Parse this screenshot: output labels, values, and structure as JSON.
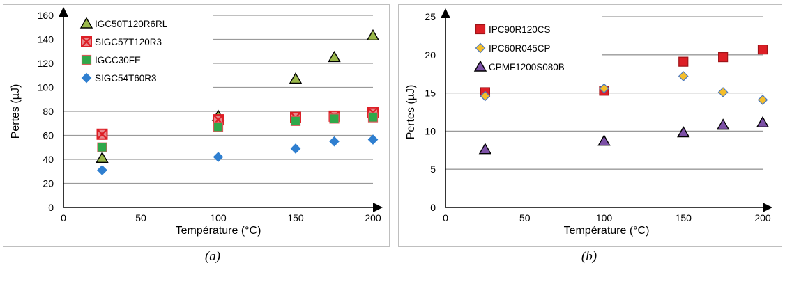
{
  "colors": {
    "gridline": "#9a9a9a",
    "axis": "#000000",
    "red": "#dd1f26",
    "green": "#2fa84a",
    "olive": "#9ab84a",
    "blue": "#2f7fd0",
    "gold": "#f5be2a",
    "purple": "#7c50a6"
  },
  "captions": {
    "a": "(a)",
    "b": "(b)"
  },
  "chart_data": [
    {
      "type": "scatter",
      "title": "",
      "xlabel": "Température (°C)",
      "ylabel": "Pertes (µJ)",
      "xlim": [
        0,
        200
      ],
      "ylim": [
        0,
        160
      ],
      "xticks": [
        0,
        50,
        100,
        150,
        200
      ],
      "yticks": [
        0,
        20,
        40,
        60,
        80,
        100,
        120,
        140,
        160
      ],
      "grid": "horizontal",
      "legend_position": "top-left",
      "series": [
        {
          "name": "IGC50T120R6RL",
          "marker": "triangle",
          "color": "#9ab84a",
          "x": [
            25,
            100,
            150,
            175,
            200
          ],
          "y": [
            41,
            76,
            107,
            125,
            143
          ]
        },
        {
          "name": "SIGC57T120R3",
          "marker": "square-cross",
          "color": "#dd1f26",
          "x": [
            25,
            100,
            150,
            175,
            200
          ],
          "y": [
            61,
            73,
            75,
            76,
            79
          ]
        },
        {
          "name": "IGCC30FE",
          "marker": "square",
          "color": "#2fa84a",
          "x": [
            25,
            100,
            150,
            175,
            200
          ],
          "y": [
            50,
            67,
            72,
            74,
            75
          ]
        },
        {
          "name": "SIGC54T60R3",
          "marker": "diamond",
          "color": "#2f7fd0",
          "x": [
            25,
            100,
            150,
            175,
            200
          ],
          "y": [
            31,
            42,
            49,
            55,
            56.5
          ]
        }
      ]
    },
    {
      "type": "scatter",
      "title": "",
      "xlabel": "Température (°C)",
      "ylabel": "Pertes (µJ)",
      "xlim": [
        0,
        200
      ],
      "ylim": [
        0,
        25
      ],
      "xticks": [
        0,
        50,
        100,
        150,
        200
      ],
      "yticks": [
        0,
        5,
        10,
        15,
        20,
        25
      ],
      "grid": "horizontal",
      "legend_position": "top-left",
      "series": [
        {
          "name": "IPC90R120CS",
          "marker": "square",
          "color": "#dd1f26",
          "x": [
            25,
            100,
            150,
            175,
            200
          ],
          "y": [
            15.1,
            15.3,
            19.1,
            19.7,
            20.7
          ]
        },
        {
          "name": "IPC60R045CP",
          "marker": "diamond",
          "color": "#f5be2a",
          "x": [
            25,
            100,
            150,
            175,
            200
          ],
          "y": [
            14.6,
            15.6,
            17.2,
            15.1,
            14.1
          ]
        },
        {
          "name": "CPMF1200S080B",
          "marker": "triangle",
          "color": "#7c50a6",
          "x": [
            25,
            100,
            150,
            175,
            200
          ],
          "y": [
            7.6,
            8.7,
            9.8,
            10.8,
            11.1
          ]
        }
      ]
    }
  ]
}
